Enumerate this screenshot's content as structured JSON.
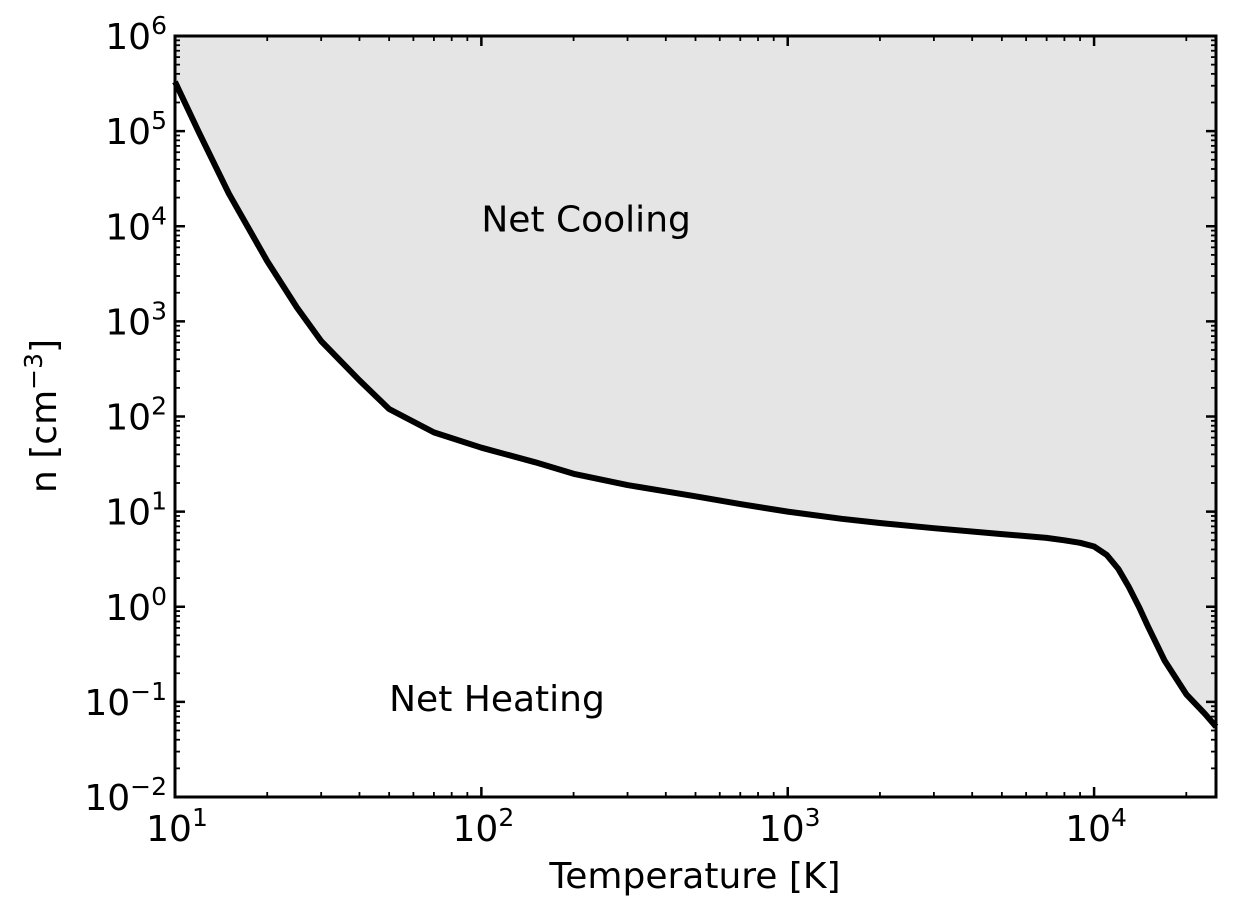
{
  "chart_data": {
    "type": "line",
    "title": "",
    "xlabel": "Temperature [K]",
    "ylabel_main": "n [cm",
    "ylabel_exp": "−3",
    "ylabel_close": "]",
    "xscale": "log",
    "yscale": "log",
    "xlim": [
      10,
      25000
    ],
    "ylim": [
      0.01,
      1000000
    ],
    "grid": false,
    "x_ticks": [
      {
        "value": 10,
        "base": "10",
        "exp": "1"
      },
      {
        "value": 100,
        "base": "10",
        "exp": "2"
      },
      {
        "value": 1000,
        "base": "10",
        "exp": "3"
      },
      {
        "value": 10000,
        "base": "10",
        "exp": "4"
      }
    ],
    "y_ticks": [
      {
        "value": 0.01,
        "base": "10",
        "exp": "−2"
      },
      {
        "value": 0.1,
        "base": "10",
        "exp": "−1"
      },
      {
        "value": 1,
        "base": "10",
        "exp": "0"
      },
      {
        "value": 10,
        "base": "10",
        "exp": "1"
      },
      {
        "value": 100,
        "base": "10",
        "exp": "2"
      },
      {
        "value": 1000,
        "base": "10",
        "exp": "3"
      },
      {
        "value": 10000,
        "base": "10",
        "exp": "4"
      },
      {
        "value": 100000,
        "base": "10",
        "exp": "5"
      },
      {
        "value": 1000000,
        "base": "10",
        "exp": "6"
      }
    ],
    "series": [
      {
        "line_color": "#000000",
        "fill_above_color": "#e5e5e5",
        "x": [
          10,
          12,
          15,
          20,
          25,
          30,
          40,
          50,
          70,
          100,
          150,
          200,
          300,
          500,
          700,
          1000,
          1500,
          2000,
          3000,
          5000,
          7000,
          8000,
          9000,
          10000,
          11000,
          12000,
          13000,
          14000,
          15000,
          17000,
          20000,
          23000,
          25000
        ],
        "y": [
          330000,
          95000,
          22000,
          4300,
          1400,
          620,
          240,
          120,
          68,
          47,
          33,
          25,
          19,
          14.5,
          12,
          10,
          8.4,
          7.6,
          6.7,
          5.8,
          5.3,
          5.0,
          4.7,
          4.3,
          3.5,
          2.5,
          1.6,
          1.0,
          0.62,
          0.27,
          0.12,
          0.075,
          0.055
        ]
      }
    ],
    "annotations": [
      {
        "text": "Net Cooling",
        "x": 100,
        "y": 12000
      },
      {
        "text": "Net Heating",
        "x": 50,
        "y": 0.11
      }
    ]
  }
}
